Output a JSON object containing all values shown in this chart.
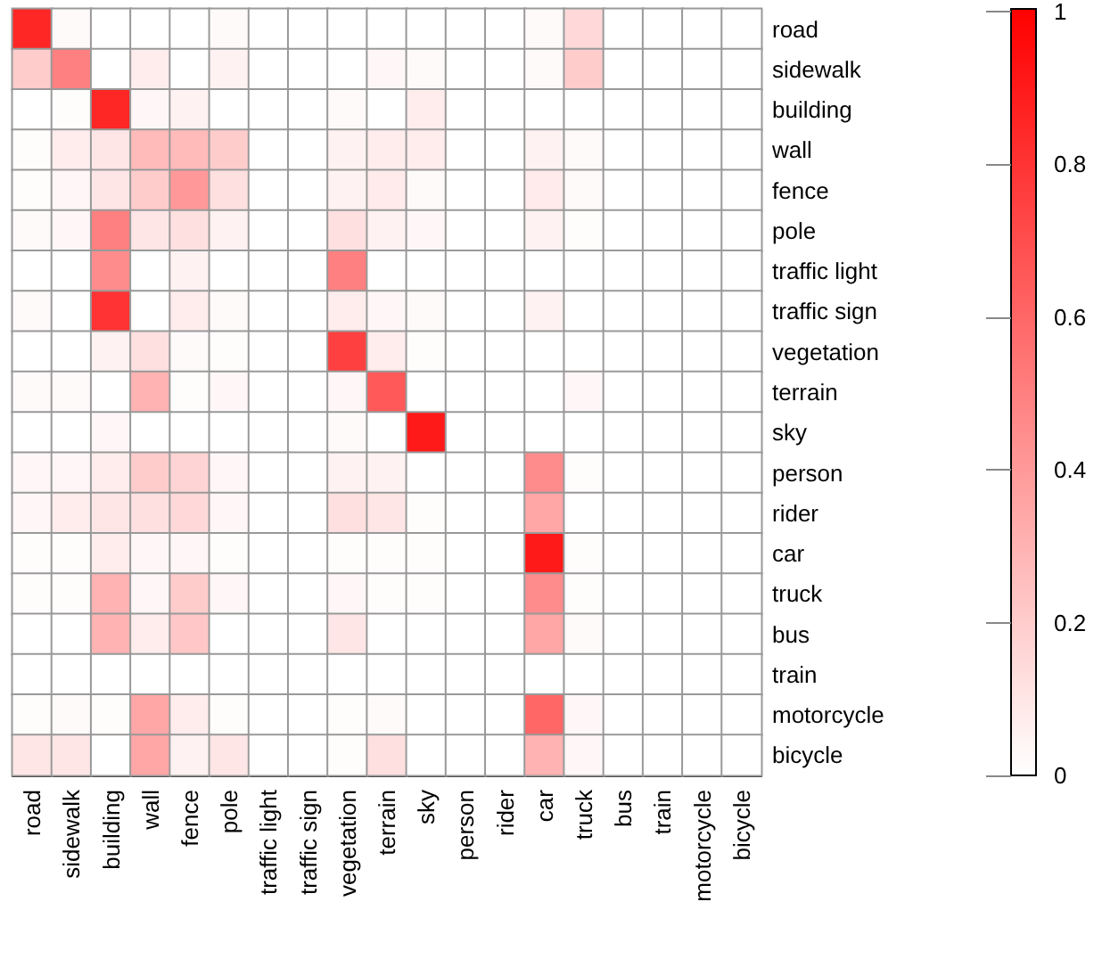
{
  "chart_data": {
    "type": "heatmap",
    "categories": [
      "road",
      "sidewalk",
      "building",
      "wall",
      "fence",
      "pole",
      "traffic light",
      "traffic sign",
      "vegetation",
      "terrain",
      "sky",
      "person",
      "rider",
      "car",
      "truck",
      "bus",
      "train",
      "motorcycle",
      "bicycle"
    ],
    "y_categories": [
      "road",
      "sidewalk",
      "building",
      "wall",
      "fence",
      "pole",
      "traffic light",
      "traffic sign",
      "vegetation",
      "terrain",
      "sky",
      "person",
      "rider",
      "car",
      "truck",
      "bus",
      "train",
      "motorcycle",
      "bicycle"
    ],
    "cells": [
      [
        0.85,
        0.02,
        0,
        0,
        0,
        0.02,
        0,
        0,
        0,
        0,
        0,
        0,
        0,
        0.02,
        0.15,
        0,
        0,
        0,
        0
      ],
      [
        0.2,
        0.5,
        0,
        0.07,
        0,
        0.05,
        0,
        0,
        0,
        0.03,
        0.02,
        0,
        0,
        0.02,
        0.2,
        0,
        0,
        0,
        0
      ],
      [
        0,
        0.01,
        0.85,
        0.03,
        0.05,
        0,
        0,
        0,
        0.02,
        0,
        0.07,
        0,
        0,
        0,
        0,
        0,
        0,
        0,
        0
      ],
      [
        0.01,
        0.07,
        0.1,
        0.27,
        0.27,
        0.2,
        0,
        0,
        0.05,
        0.07,
        0.07,
        0,
        0,
        0.05,
        0.02,
        0,
        0,
        0,
        0
      ],
      [
        0.01,
        0.03,
        0.1,
        0.2,
        0.4,
        0.12,
        0,
        0,
        0.05,
        0.08,
        0.02,
        0,
        0,
        0.08,
        0.02,
        0,
        0,
        0,
        0
      ],
      [
        0.02,
        0.03,
        0.5,
        0.1,
        0.12,
        0.05,
        0,
        0,
        0.12,
        0.05,
        0.03,
        0,
        0,
        0.05,
        0.01,
        0,
        0,
        0,
        0
      ],
      [
        0,
        0,
        0.45,
        0,
        0.05,
        0,
        0,
        0,
        0.5,
        0,
        0,
        0,
        0,
        0,
        0,
        0,
        0,
        0,
        0
      ],
      [
        0.02,
        0,
        0.8,
        0,
        0.07,
        0.02,
        0,
        0,
        0.07,
        0.03,
        0.02,
        0,
        0,
        0.05,
        0,
        0,
        0,
        0,
        0
      ],
      [
        0,
        0,
        0.05,
        0.12,
        0.02,
        0.01,
        0,
        0,
        0.75,
        0.07,
        0.01,
        0,
        0,
        0,
        0,
        0,
        0,
        0,
        0
      ],
      [
        0.02,
        0.02,
        0,
        0.3,
        0.01,
        0.03,
        0,
        0,
        0.03,
        0.65,
        0,
        0,
        0,
        0,
        0.03,
        0,
        0,
        0,
        0
      ],
      [
        0,
        0,
        0.03,
        0,
        0,
        0,
        0,
        0,
        0.02,
        0,
        0.9,
        0,
        0,
        0,
        0,
        0,
        0,
        0,
        0
      ],
      [
        0.03,
        0.03,
        0.07,
        0.2,
        0.17,
        0.03,
        0,
        0,
        0.05,
        0.05,
        0,
        0,
        0,
        0.45,
        0.01,
        0,
        0,
        0,
        0
      ],
      [
        0.03,
        0.07,
        0.1,
        0.12,
        0.15,
        0.03,
        0,
        0,
        0.12,
        0.1,
        0.01,
        0,
        0,
        0.35,
        0,
        0,
        0,
        0,
        0
      ],
      [
        0.01,
        0.01,
        0.07,
        0.03,
        0.03,
        0.01,
        0,
        0,
        0.01,
        0.01,
        0.01,
        0,
        0,
        0.9,
        0.01,
        0,
        0,
        0,
        0
      ],
      [
        0.01,
        0.01,
        0.3,
        0.03,
        0.2,
        0.03,
        0,
        0,
        0.03,
        0.01,
        0.01,
        0,
        0,
        0.45,
        0.01,
        0,
        0,
        0,
        0
      ],
      [
        0,
        0,
        0.3,
        0.07,
        0.22,
        0,
        0,
        0,
        0.1,
        0,
        0,
        0,
        0,
        0.35,
        0.02,
        0,
        0,
        0,
        0
      ],
      [
        0,
        0,
        0,
        0,
        0,
        0,
        0,
        0,
        0,
        0,
        0,
        0,
        0,
        0,
        0,
        0,
        0,
        0,
        0
      ],
      [
        0.01,
        0.02,
        0.01,
        0.35,
        0.07,
        0.01,
        0,
        0,
        0.01,
        0.02,
        0,
        0,
        0,
        0.6,
        0.03,
        0,
        0,
        0,
        0
      ],
      [
        0.1,
        0.1,
        0,
        0.35,
        0.05,
        0.1,
        0,
        0,
        0.01,
        0.12,
        0,
        0,
        0,
        0.3,
        0.03,
        0,
        0,
        0,
        0
      ]
    ],
    "clim": [
      0,
      1
    ],
    "cticks": [
      0,
      0.2,
      0.4,
      0.6,
      0.8,
      1
    ]
  }
}
